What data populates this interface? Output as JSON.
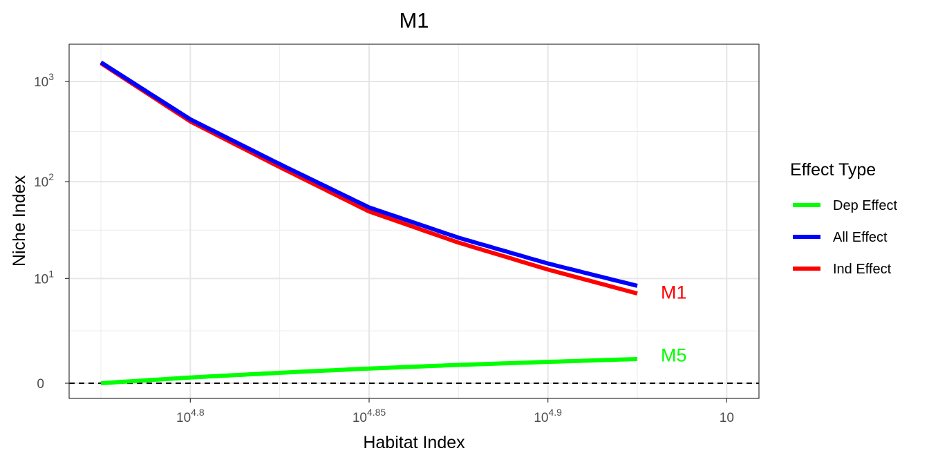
{
  "chart_data": {
    "type": "line",
    "title": "M1",
    "xlabel": "Habitat Index",
    "ylabel": "Niche Index",
    "x_scale": "log10",
    "y_scale": "pseudo-log10",
    "xlim": [
      58000,
      10
    ],
    "ylim": [
      -0.55,
      2.58
    ],
    "x_ticks": [
      {
        "value": 63095.7,
        "label_base": "10",
        "label_exp": "4.8"
      },
      {
        "value": 70794.6,
        "label_base": "10",
        "label_exp": "4.85"
      },
      {
        "value": 79432.8,
        "label_base": "10",
        "label_exp": "4.9"
      },
      {
        "value": 89125.1,
        "label_base": "10",
        "label_exp": ""
      }
    ],
    "y_ticks": [
      {
        "value": 0,
        "label_base": "0",
        "label_exp": ""
      },
      {
        "value": 10,
        "label_base": "10",
        "label_exp": "1"
      },
      {
        "value": 100,
        "label_base": "10",
        "label_exp": "2"
      },
      {
        "value": 1000,
        "label_base": "10",
        "label_exp": "3"
      }
    ],
    "grid": true,
    "legend": {
      "title": "Effect Type",
      "position": "right",
      "entries": [
        {
          "label": "Dep Effect",
          "color": "#00ff00"
        },
        {
          "label": "All Effect",
          "color": "#0000ff"
        },
        {
          "label": "Ind Effect",
          "color": "#ff0000"
        }
      ]
    },
    "series": [
      {
        "name": "Dep Effect",
        "color": "#00ff00",
        "x": [
          59566,
          63096,
          66834,
          70795,
          74989,
          79433,
          84139
        ],
        "y": [
          0.0,
          0.14,
          0.27,
          0.4,
          0.52,
          0.63,
          0.74
        ]
      },
      {
        "name": "All Effect",
        "color": "#0000ff",
        "x": [
          59566,
          63096,
          66834,
          70795,
          74989,
          79433,
          84139
        ],
        "y": [
          1550,
          420,
          150,
          55,
          27,
          14.5,
          8.3
        ]
      },
      {
        "name": "Ind Effect",
        "color": "#ff0000",
        "x": [
          59566,
          63096,
          66834,
          70795,
          74989,
          79433,
          84139
        ],
        "y": [
          1520,
          400,
          140,
          50,
          24,
          12.5,
          6.8
        ]
      }
    ],
    "annotations": [
      {
        "text": "M1",
        "x": 87000,
        "y": 7.0,
        "color": "#ff0000"
      },
      {
        "text": "M5",
        "x": 87000,
        "y": 0.9,
        "color": "#00ff00"
      }
    ],
    "reference_line": {
      "y": 0,
      "style": "dashed",
      "color": "#000000"
    }
  }
}
